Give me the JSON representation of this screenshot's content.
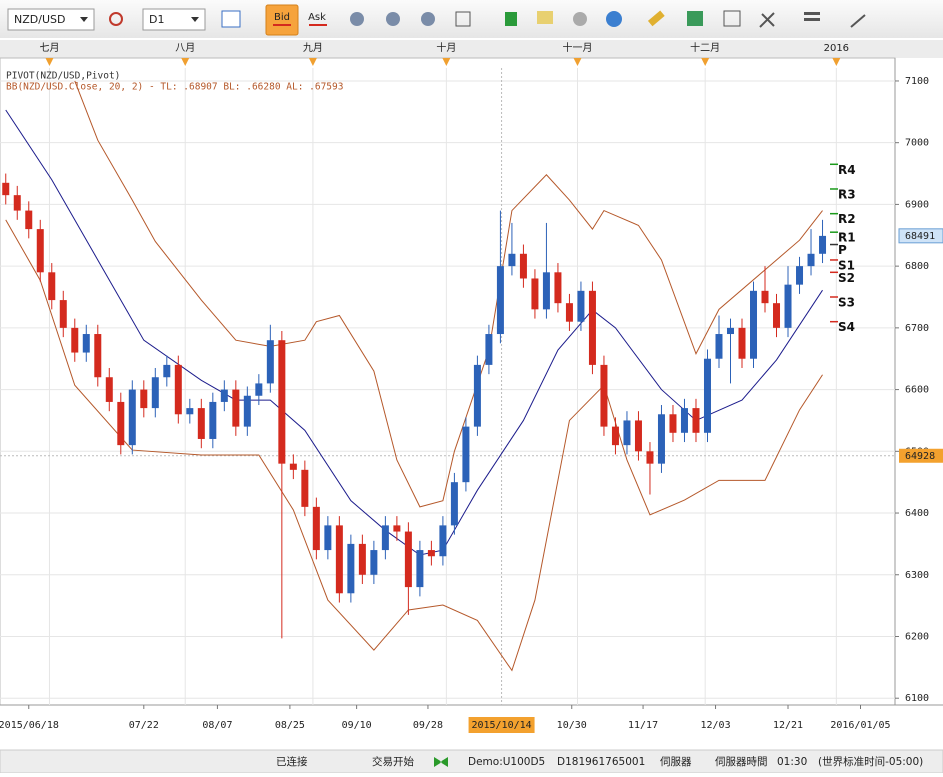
{
  "toolbar": {
    "symbol": "NZD/USD",
    "timeframe": "D1",
    "bid": "Bid",
    "ask": "Ask"
  },
  "chart_data": {
    "type": "candlestick",
    "indicator_legend": [
      "PIVOT(NZD/USD,Pivot)",
      "BB(NZD/USD.Close, 20, 2)  -   TL: .68907   BL: .66280   AL: .67593"
    ],
    "x": [
      0,
      1,
      2,
      3,
      4,
      5,
      6,
      7,
      8,
      9,
      10,
      11,
      12,
      13,
      14,
      15,
      16,
      17,
      18,
      19,
      20,
      21,
      22,
      23,
      24,
      25,
      26,
      27,
      28,
      29,
      30,
      31,
      32,
      33,
      34,
      35,
      36,
      37,
      38,
      39,
      40,
      41,
      42,
      43,
      44,
      45,
      46,
      47,
      48,
      49,
      50,
      51,
      52,
      53,
      54,
      55,
      56,
      57,
      58,
      59,
      60,
      61,
      62,
      63,
      64,
      65,
      66,
      67,
      68,
      69,
      70,
      71
    ],
    "open": [
      0.6935,
      0.6915,
      0.689,
      0.686,
      0.679,
      0.6745,
      0.67,
      0.666,
      0.669,
      0.662,
      0.658,
      0.651,
      0.66,
      0.657,
      0.662,
      0.664,
      0.656,
      0.657,
      0.652,
      0.658,
      0.66,
      0.654,
      0.659,
      0.661,
      0.668,
      0.648,
      0.647,
      0.641,
      0.634,
      0.638,
      0.627,
      0.635,
      0.63,
      0.634,
      0.638,
      0.637,
      0.628,
      0.634,
      0.633,
      0.638,
      0.645,
      0.654,
      0.664,
      0.669,
      0.68,
      0.682,
      0.678,
      0.673,
      0.679,
      0.674,
      0.671,
      0.676,
      0.664,
      0.654,
      0.651,
      0.655,
      0.65,
      0.648,
      0.656,
      0.653,
      0.657,
      0.653,
      0.665,
      0.669,
      0.67,
      0.665,
      0.676,
      0.674,
      0.67,
      0.677,
      0.68,
      0.682
    ],
    "high": [
      0.695,
      0.693,
      0.6905,
      0.6875,
      0.6805,
      0.676,
      0.6715,
      0.6705,
      0.6705,
      0.6635,
      0.6595,
      0.6615,
      0.6615,
      0.6635,
      0.6655,
      0.6655,
      0.6585,
      0.6585,
      0.6595,
      0.6615,
      0.6615,
      0.6605,
      0.6625,
      0.6705,
      0.6695,
      0.6495,
      0.6485,
      0.6425,
      0.6395,
      0.6395,
      0.6365,
      0.6365,
      0.6355,
      0.6395,
      0.6395,
      0.6385,
      0.6355,
      0.6355,
      0.6395,
      0.6465,
      0.6555,
      0.6655,
      0.6705,
      0.689,
      0.687,
      0.6835,
      0.6795,
      0.687,
      0.6805,
      0.6755,
      0.6775,
      0.6775,
      0.6655,
      0.6555,
      0.6565,
      0.6565,
      0.6515,
      0.6575,
      0.6575,
      0.6585,
      0.6585,
      0.6665,
      0.672,
      0.6715,
      0.6715,
      0.6775,
      0.68,
      0.6755,
      0.68,
      0.6815,
      0.686,
      0.6875
    ],
    "low": [
      0.69,
      0.6875,
      0.6845,
      0.6775,
      0.673,
      0.6685,
      0.6645,
      0.6645,
      0.6605,
      0.6565,
      0.6495,
      0.6495,
      0.6555,
      0.6555,
      0.6605,
      0.6545,
      0.6545,
      0.6505,
      0.6505,
      0.6565,
      0.6525,
      0.6525,
      0.6575,
      0.6595,
      0.6197,
      0.6455,
      0.6395,
      0.6325,
      0.6325,
      0.6255,
      0.6255,
      0.6285,
      0.6285,
      0.6325,
      0.6355,
      0.6235,
      0.6265,
      0.6315,
      0.6315,
      0.6365,
      0.6435,
      0.6525,
      0.6625,
      0.6675,
      0.6785,
      0.6765,
      0.6715,
      0.6715,
      0.6725,
      0.6695,
      0.6695,
      0.6625,
      0.6525,
      0.6495,
      0.6495,
      0.6485,
      0.643,
      0.6465,
      0.6515,
      0.6515,
      0.6515,
      0.6515,
      0.6635,
      0.661,
      0.6635,
      0.6635,
      0.6725,
      0.6685,
      0.6685,
      0.6755,
      0.6785,
      0.6805
    ],
    "close": [
      0.6915,
      0.689,
      0.686,
      0.679,
      0.6745,
      0.67,
      0.666,
      0.669,
      0.662,
      0.658,
      0.651,
      0.66,
      0.657,
      0.662,
      0.664,
      0.656,
      0.657,
      0.652,
      0.658,
      0.66,
      0.654,
      0.659,
      0.661,
      0.668,
      0.648,
      0.647,
      0.641,
      0.634,
      0.638,
      0.627,
      0.635,
      0.63,
      0.634,
      0.638,
      0.637,
      0.628,
      0.634,
      0.633,
      0.638,
      0.645,
      0.654,
      0.664,
      0.669,
      0.68,
      0.682,
      0.678,
      0.673,
      0.679,
      0.674,
      0.671,
      0.676,
      0.664,
      0.654,
      0.651,
      0.655,
      0.65,
      0.648,
      0.656,
      0.653,
      0.657,
      0.653,
      0.665,
      0.669,
      0.67,
      0.665,
      0.676,
      0.674,
      0.67,
      0.677,
      0.68,
      0.682,
      0.6849
    ],
    "up_color": "#2c62b8",
    "down_color": "#d42a1e",
    "overlays": [
      {
        "color": "#b5582a",
        "x": [
          6,
          8,
          11,
          13,
          17,
          20,
          23,
          26,
          27,
          29,
          32,
          34,
          36,
          38,
          39,
          42,
          44,
          47,
          49,
          51,
          52,
          55,
          57,
          60,
          62,
          66,
          69,
          71
        ],
        "values": [
          0.71,
          0.7004,
          0.6907,
          0.684,
          0.6745,
          0.668,
          0.667,
          0.668,
          0.671,
          0.672,
          0.663,
          0.6486,
          0.641,
          0.642,
          0.65,
          0.6664,
          0.689,
          0.6948,
          0.6907,
          0.686,
          0.689,
          0.6866,
          0.681,
          0.6658,
          0.673,
          0.6794,
          0.6842,
          0.689
        ]
      },
      {
        "color": "#1c1c8c",
        "x": [
          0,
          4,
          8,
          12,
          17,
          20,
          23,
          26,
          30,
          33,
          36,
          38,
          41,
          45,
          48,
          51,
          53,
          57,
          60,
          64,
          67,
          71
        ],
        "values": [
          0.7053,
          0.694,
          0.681,
          0.668,
          0.6615,
          0.6583,
          0.6583,
          0.6534,
          0.642,
          0.6372,
          0.6332,
          0.634,
          0.6437,
          0.655,
          0.6664,
          0.6729,
          0.67,
          0.66,
          0.655,
          0.6583,
          0.6648,
          0.6761
        ]
      },
      {
        "color": "#b5582a",
        "x": [
          0,
          3,
          6,
          11,
          17,
          22,
          25,
          28,
          32,
          35,
          38,
          41,
          44,
          46,
          49,
          52,
          54,
          56,
          59,
          62,
          66,
          69,
          71
        ],
        "values": [
          0.6875,
          0.6777,
          0.6607,
          0.6502,
          0.6494,
          0.6494,
          0.6405,
          0.6259,
          0.6178,
          0.6243,
          0.6251,
          0.6226,
          0.6145,
          0.6259,
          0.655,
          0.6607,
          0.6486,
          0.6397,
          0.6421,
          0.6453,
          0.6453,
          0.6567,
          0.6624
        ]
      }
    ],
    "pivots": [
      {
        "name": "R4",
        "value": 0.6965,
        "color": "#1a9a1a"
      },
      {
        "name": "R3",
        "value": 0.6925,
        "color": "#1a9a1a"
      },
      {
        "name": "R2",
        "value": 0.6885,
        "color": "#1a9a1a"
      },
      {
        "name": "R1",
        "value": 0.6855,
        "color": "#1a9a1a"
      },
      {
        "name": "P",
        "value": 0.6835,
        "color": "#333333"
      },
      {
        "name": "S1",
        "value": 0.681,
        "color": "#d42a1e"
      },
      {
        "name": "S2",
        "value": 0.679,
        "color": "#d42a1e"
      },
      {
        "name": "S3",
        "value": 0.675,
        "color": "#d42a1e"
      },
      {
        "name": "S4",
        "value": 0.671,
        "color": "#d42a1e"
      }
    ],
    "xlim": [
      -0.5,
      77.3
    ],
    "ylim": [
      0.6089,
      0.7121
    ],
    "yticks": [
      {
        "value": 0.71,
        "label": "7100"
      },
      {
        "value": 0.7,
        "label": "7000"
      },
      {
        "value": 0.69,
        "label": "6900"
      },
      {
        "value": 0.68,
        "label": "6800"
      },
      {
        "value": 0.67,
        "label": "6700"
      },
      {
        "value": 0.66,
        "label": "6600"
      },
      {
        "value": 0.65,
        "label": "6500"
      },
      {
        "value": 0.64,
        "label": "6400"
      },
      {
        "value": 0.63,
        "label": "6300"
      },
      {
        "value": 0.62,
        "label": "6200"
      },
      {
        "value": 0.61,
        "label": "6100"
      }
    ],
    "xticks": [
      {
        "value": 2,
        "label": "2015/06/18"
      },
      {
        "value": 12,
        "label": "07/22"
      },
      {
        "value": 18.4,
        "label": "08/07"
      },
      {
        "value": 24.7,
        "label": "08/25"
      },
      {
        "value": 30.5,
        "label": "09/10"
      },
      {
        "value": 36.7,
        "label": "09/28"
      },
      {
        "value": 49.2,
        "label": "10/30"
      },
      {
        "value": 55.4,
        "label": "11/17"
      },
      {
        "value": 61.7,
        "label": "12/03"
      },
      {
        "value": 68,
        "label": "12/21"
      },
      {
        "value": 74.3,
        "label": "2016/01/05"
      }
    ],
    "month_ticks": [
      {
        "value": 3.8,
        "label": "七月"
      },
      {
        "value": 15.6,
        "label": "八月"
      },
      {
        "value": 26.7,
        "label": "九月"
      },
      {
        "value": 38.3,
        "label": "十月"
      },
      {
        "value": 49.7,
        "label": "十一月"
      },
      {
        "value": 60.8,
        "label": "十二月"
      },
      {
        "value": 72.2,
        "label": "2016"
      }
    ],
    "crosshair": {
      "x": 43.1,
      "y": 0.64928,
      "x_label": "2015/10/14",
      "y_label": "64928"
    },
    "last_price": {
      "value": 0.68491,
      "label": "68491"
    },
    "grid": true
  },
  "status_bar": [
    "已连接",
    "交易开始",
    "Demo:U100D5",
    "D181961765001",
    "伺服器",
    "伺服器時間",
    "01:30",
    "(世界标准时间-05:00)"
  ]
}
